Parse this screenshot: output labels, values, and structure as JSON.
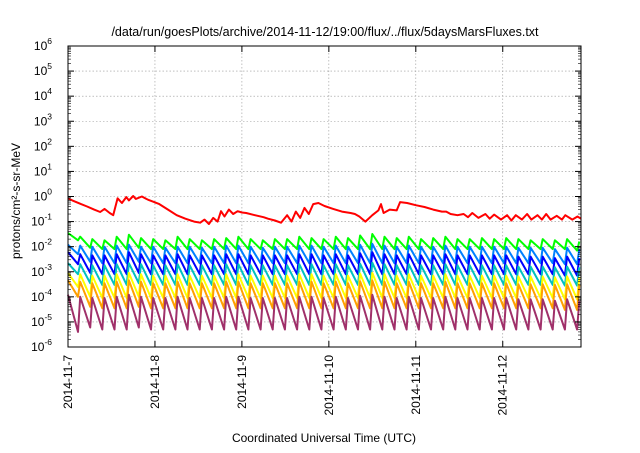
{
  "chart_data": {
    "type": "line",
    "title": "/data/run/goesPlots/archive/2014-11-12/19:00/flux/../flux/5daysMarsFluxes.txt",
    "xlabel": "Coordinated Universal Time (UTC)",
    "ylabel": "protons/cm²-s-sr-MeV",
    "y_scale": "log",
    "ylim": [
      1e-06,
      1000000.0
    ],
    "xlim_days": [
      0,
      5.9
    ],
    "grid": true,
    "legend": "none",
    "y_ticks": [
      {
        "exp": -6,
        "label": "10",
        "sup": "-6"
      },
      {
        "exp": -5,
        "label": "10",
        "sup": "-5"
      },
      {
        "exp": -4,
        "label": "10",
        "sup": "-4"
      },
      {
        "exp": -3,
        "label": "10",
        "sup": "-3"
      },
      {
        "exp": -2,
        "label": "10",
        "sup": "-2"
      },
      {
        "exp": -1,
        "label": "10",
        "sup": "-1"
      },
      {
        "exp": 0,
        "label": "10",
        "sup": "0"
      },
      {
        "exp": 1,
        "label": "10",
        "sup": "1"
      },
      {
        "exp": 2,
        "label": "10",
        "sup": "2"
      },
      {
        "exp": 3,
        "label": "10",
        "sup": "3"
      },
      {
        "exp": 4,
        "label": "10",
        "sup": "4"
      },
      {
        "exp": 5,
        "label": "10",
        "sup": "5"
      },
      {
        "exp": 6,
        "label": "10",
        "sup": "6"
      }
    ],
    "x_ticks": [
      {
        "day": 0,
        "label": "2014-11-7"
      },
      {
        "day": 1,
        "label": "2014-11-8"
      },
      {
        "day": 2,
        "label": "2014-11-9"
      },
      {
        "day": 3,
        "label": "2014-11-10"
      },
      {
        "day": 4,
        "label": "2014-11-11"
      },
      {
        "day": 5,
        "label": "2014-11-12"
      }
    ],
    "series": [
      {
        "color": "#ff0000",
        "x": [
          0,
          0.05,
          0.15,
          0.22,
          0.3,
          0.37,
          0.42,
          0.48,
          0.52,
          0.57,
          0.62,
          0.67,
          0.7,
          0.75,
          0.78,
          0.85,
          0.9,
          0.93,
          0.98,
          1.05,
          1.15,
          1.25,
          1.35,
          1.45,
          1.52,
          1.57,
          1.62,
          1.67,
          1.72,
          1.76,
          1.8,
          1.85,
          1.9,
          1.95,
          2.0,
          2.05,
          2.15,
          2.25,
          2.3,
          2.38,
          2.45,
          2.52,
          2.57,
          2.62,
          2.67,
          2.72,
          2.77,
          2.82,
          2.88,
          2.95,
          3.05,
          3.15,
          3.25,
          3.3,
          3.35,
          3.42,
          3.5,
          3.57,
          3.6,
          3.63,
          3.7,
          3.78,
          3.82,
          3.9,
          4.0,
          4.1,
          4.2,
          4.3,
          4.35,
          4.4,
          4.48,
          4.55,
          4.6,
          4.65,
          4.72,
          4.8,
          4.85,
          4.9,
          4.98,
          5.05,
          5.1,
          5.15,
          5.22,
          5.28,
          5.33,
          5.4,
          5.45,
          5.5,
          5.55,
          5.62,
          5.68,
          5.72,
          5.8,
          5.86,
          5.9
        ],
        "y": [
          0.85,
          0.7,
          0.5,
          0.4,
          0.3,
          0.24,
          0.32,
          0.22,
          0.18,
          0.85,
          0.55,
          0.95,
          0.7,
          1.05,
          0.8,
          1.0,
          0.8,
          0.72,
          0.62,
          0.5,
          0.3,
          0.18,
          0.13,
          0.1,
          0.09,
          0.12,
          0.08,
          0.14,
          0.1,
          0.26,
          0.16,
          0.3,
          0.2,
          0.26,
          0.23,
          0.22,
          0.18,
          0.15,
          0.13,
          0.11,
          0.09,
          0.18,
          0.1,
          0.25,
          0.14,
          0.35,
          0.2,
          0.5,
          0.55,
          0.42,
          0.32,
          0.25,
          0.22,
          0.2,
          0.16,
          0.1,
          0.18,
          0.28,
          0.5,
          0.22,
          0.3,
          0.28,
          0.6,
          0.55,
          0.45,
          0.38,
          0.3,
          0.25,
          0.25,
          0.2,
          0.18,
          0.2,
          0.15,
          0.22,
          0.14,
          0.2,
          0.13,
          0.19,
          0.12,
          0.18,
          0.11,
          0.18,
          0.12,
          0.2,
          0.12,
          0.18,
          0.12,
          0.2,
          0.12,
          0.17,
          0.12,
          0.18,
          0.12,
          0.16,
          0.13
        ]
      },
      {
        "color": "#00ff00",
        "x_step_days": 0.14,
        "peaks": [
          0.035,
          0.025,
          0.02,
          0.018,
          0.025,
          0.03,
          0.022,
          0.02,
          0.018,
          0.025,
          0.02,
          0.018,
          0.02,
          0.022,
          0.025,
          0.02,
          0.018,
          0.02,
          0.02,
          0.025,
          0.022,
          0.02,
          0.025,
          0.022,
          0.028,
          0.032,
          0.025,
          0.022,
          0.025,
          0.02,
          0.022,
          0.025,
          0.02,
          0.02,
          0.022,
          0.02,
          0.022,
          0.02,
          0.018,
          0.02,
          0.018,
          0.02,
          0.016
        ],
        "dips": [
          0.018,
          0.009,
          0.008,
          0.008,
          0.008,
          0.009,
          0.008,
          0.008,
          0.008,
          0.008,
          0.008,
          0.008,
          0.008,
          0.008,
          0.008,
          0.008,
          0.008,
          0.008,
          0.008,
          0.008,
          0.008,
          0.008,
          0.008,
          0.008,
          0.008,
          0.008,
          0.008,
          0.008,
          0.008,
          0.008,
          0.008,
          0.008,
          0.008,
          0.008,
          0.008,
          0.008,
          0.008,
          0.008,
          0.008,
          0.008,
          0.008,
          0.007,
          0.007
        ]
      },
      {
        "color": "#0080ff",
        "x_step_days": 0.14,
        "peaks": [
          0.012,
          0.011,
          0.01,
          0.01,
          0.011,
          0.012,
          0.01,
          0.01,
          0.009,
          0.01,
          0.01,
          0.009,
          0.01,
          0.011,
          0.011,
          0.01,
          0.009,
          0.01,
          0.01,
          0.011,
          0.011,
          0.01,
          0.011,
          0.01,
          0.012,
          0.013,
          0.011,
          0.01,
          0.011,
          0.01,
          0.01,
          0.011,
          0.01,
          0.01,
          0.01,
          0.01,
          0.01,
          0.009,
          0.009,
          0.009,
          0.008,
          0.009,
          0.008
        ],
        "dips": [
          0.005,
          0.0025,
          0.0022,
          0.0022,
          0.0022,
          0.0025,
          0.0022,
          0.0022,
          0.0022,
          0.0022,
          0.0022,
          0.0022,
          0.0022,
          0.0022,
          0.0022,
          0.0022,
          0.0022,
          0.0022,
          0.0022,
          0.0022,
          0.0022,
          0.0022,
          0.0022,
          0.0022,
          0.0022,
          0.0022,
          0.0022,
          0.0022,
          0.0022,
          0.0022,
          0.0022,
          0.0022,
          0.0022,
          0.0022,
          0.0022,
          0.0022,
          0.0022,
          0.0022,
          0.0022,
          0.0022,
          0.002,
          0.002,
          0.002
        ]
      },
      {
        "color": "#0000ff",
        "x_step_days": 0.14,
        "peaks": [
          0.006,
          0.005,
          0.0045,
          0.0045,
          0.005,
          0.006,
          0.005,
          0.0045,
          0.0045,
          0.005,
          0.0045,
          0.0045,
          0.0045,
          0.005,
          0.005,
          0.0045,
          0.0045,
          0.0045,
          0.0045,
          0.005,
          0.005,
          0.0045,
          0.005,
          0.0045,
          0.0055,
          0.006,
          0.005,
          0.0045,
          0.005,
          0.0045,
          0.0045,
          0.005,
          0.0045,
          0.0045,
          0.0045,
          0.0045,
          0.0045,
          0.004,
          0.004,
          0.004,
          0.0035,
          0.004,
          0.0035
        ],
        "dips": [
          0.002,
          0.0009,
          0.0008,
          0.0008,
          0.0008,
          0.0009,
          0.0008,
          0.0008,
          0.0008,
          0.0008,
          0.0008,
          0.0008,
          0.0008,
          0.0008,
          0.0008,
          0.0008,
          0.0008,
          0.0008,
          0.0008,
          0.0008,
          0.0008,
          0.0008,
          0.0008,
          0.0008,
          0.0008,
          0.0008,
          0.0008,
          0.0008,
          0.0008,
          0.0008,
          0.0008,
          0.0008,
          0.0008,
          0.0008,
          0.0008,
          0.0008,
          0.0008,
          0.0008,
          0.0008,
          0.0008,
          0.0007,
          0.0007,
          0.0007
        ]
      },
      {
        "color": "#00c0c0",
        "x_step_days": 0.14,
        "peaks": [
          0.0022,
          0.002,
          0.0018,
          0.0018,
          0.002,
          0.0022,
          0.002,
          0.0018,
          0.0018,
          0.002,
          0.0018,
          0.0018,
          0.0018,
          0.002,
          0.002,
          0.0018,
          0.0018,
          0.0018,
          0.0018,
          0.002,
          0.002,
          0.0018,
          0.002,
          0.0018,
          0.0021,
          0.0023,
          0.002,
          0.0018,
          0.002,
          0.0018,
          0.0018,
          0.002,
          0.0018,
          0.0018,
          0.0018,
          0.0018,
          0.0018,
          0.0016,
          0.0016,
          0.0016,
          0.0015,
          0.0016,
          0.0015
        ],
        "dips": [
          0.0008,
          0.00035,
          0.0003,
          0.0003,
          0.0003,
          0.00035,
          0.0003,
          0.0003,
          0.0003,
          0.0003,
          0.0003,
          0.0003,
          0.0003,
          0.0003,
          0.0003,
          0.0003,
          0.0003,
          0.0003,
          0.0003,
          0.0003,
          0.0003,
          0.0003,
          0.0003,
          0.0003,
          0.0003,
          0.0003,
          0.0003,
          0.0003,
          0.0003,
          0.0003,
          0.0003,
          0.0003,
          0.0003,
          0.0003,
          0.0003,
          0.0003,
          0.0003,
          0.0003,
          0.0003,
          0.0003,
          0.00028,
          0.00028,
          0.00028
        ]
      },
      {
        "color": "#ffff00",
        "x_step_days": 0.14,
        "peaks": [
          0.0009,
          0.0008,
          0.0007,
          0.0007,
          0.0008,
          0.0009,
          0.0008,
          0.0007,
          0.0007,
          0.0008,
          0.0007,
          0.0007,
          0.0007,
          0.0008,
          0.0008,
          0.0007,
          0.0007,
          0.0007,
          0.0007,
          0.0008,
          0.0008,
          0.0007,
          0.0008,
          0.0007,
          0.00085,
          0.0009,
          0.0008,
          0.0007,
          0.0008,
          0.0007,
          0.0007,
          0.0008,
          0.0007,
          0.0007,
          0.0007,
          0.0007,
          0.0007,
          0.00065,
          0.00065,
          0.00065,
          0.0006,
          0.00065,
          0.0006
        ],
        "dips": [
          0.00025,
          0.0001,
          9e-05,
          9e-05,
          9e-05,
          0.0001,
          9e-05,
          9e-05,
          9e-05,
          9e-05,
          9e-05,
          9e-05,
          9e-05,
          9e-05,
          9e-05,
          9e-05,
          9e-05,
          9e-05,
          9e-05,
          9e-05,
          9e-05,
          9e-05,
          9e-05,
          9e-05,
          9e-05,
          9e-05,
          9e-05,
          9e-05,
          9e-05,
          9e-05,
          9e-05,
          9e-05,
          9e-05,
          9e-05,
          9e-05,
          9e-05,
          9e-05,
          9e-05,
          9e-05,
          9e-05,
          8e-05,
          8e-05,
          8e-05
        ]
      },
      {
        "color": "#ffa000",
        "x_step_days": 0.14,
        "peaks": [
          0.00045,
          0.0004,
          0.00035,
          0.00035,
          0.0004,
          0.00045,
          0.0004,
          0.00035,
          0.00035,
          0.0004,
          0.00035,
          0.00035,
          0.00035,
          0.0004,
          0.0004,
          0.00035,
          0.00035,
          0.00035,
          0.00035,
          0.0004,
          0.0004,
          0.00035,
          0.0004,
          0.00035,
          0.00042,
          0.00045,
          0.0004,
          0.00035,
          0.0004,
          0.00035,
          0.00035,
          0.0004,
          0.00035,
          0.00035,
          0.00035,
          0.00035,
          0.00035,
          0.00032,
          0.00032,
          0.00032,
          0.0003,
          0.00032,
          0.0003
        ],
        "dips": [
          0.0001,
          4e-05,
          3.5e-05,
          3.5e-05,
          3.5e-05,
          4e-05,
          3.5e-05,
          3.5e-05,
          3.5e-05,
          3.5e-05,
          3.5e-05,
          3.5e-05,
          3.5e-05,
          3.5e-05,
          3.5e-05,
          3.5e-05,
          3.5e-05,
          3.5e-05,
          3.5e-05,
          3.5e-05,
          3.5e-05,
          3.5e-05,
          3.5e-05,
          3.5e-05,
          3.5e-05,
          3.5e-05,
          3.5e-05,
          3.5e-05,
          3.5e-05,
          3.5e-05,
          3.5e-05,
          3.5e-05,
          3.5e-05,
          3.5e-05,
          3.5e-05,
          3.5e-05,
          3.5e-05,
          3.5e-05,
          3.5e-05,
          3.5e-05,
          3e-05,
          3e-05,
          3e-05
        ]
      },
      {
        "color": "#a0306a",
        "x_step_days": 0.14,
        "peaks": [
          0.00012,
          0.0001,
          9e-05,
          9e-05,
          0.0001,
          0.00012,
          0.0001,
          9e-05,
          9e-05,
          0.0001,
          9e-05,
          9e-05,
          9e-05,
          0.0001,
          0.0001,
          9e-05,
          9e-05,
          9e-05,
          9e-05,
          0.0001,
          0.0001,
          9e-05,
          0.0001,
          9e-05,
          0.00011,
          0.00012,
          0.0001,
          9e-05,
          0.0001,
          9e-05,
          9e-05,
          0.0001,
          9e-05,
          9e-05,
          9e-05,
          9e-05,
          9e-05,
          8e-05,
          8e-05,
          8e-05,
          7e-05,
          8e-05,
          7e-05
        ],
        "dips": [
          4e-06,
          6e-06,
          5e-06,
          5e-06,
          5e-06,
          6e-06,
          5e-06,
          5e-06,
          5e-06,
          5e-06,
          5e-06,
          5e-06,
          5e-06,
          5e-06,
          5e-06,
          5e-06,
          5e-06,
          5e-06,
          5e-06,
          5e-06,
          5e-06,
          5e-06,
          5e-06,
          5e-06,
          5e-06,
          5e-06,
          5e-06,
          5e-06,
          5e-06,
          5e-06,
          5e-06,
          5e-06,
          5e-06,
          5e-06,
          5e-06,
          5e-06,
          5e-06,
          5e-06,
          5e-06,
          5e-06,
          5e-06,
          5e-06,
          5e-06
        ]
      }
    ]
  }
}
